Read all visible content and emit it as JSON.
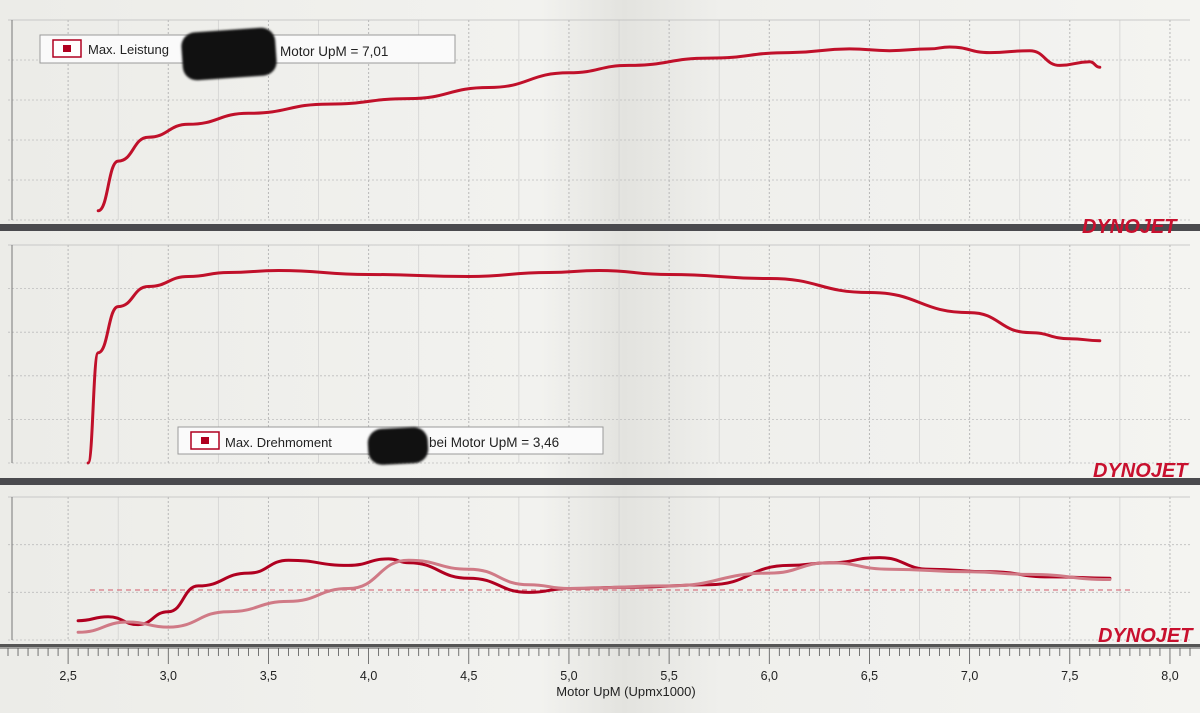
{
  "brand": {
    "logo": "DYNOJET"
  },
  "chart_data": [
    {
      "type": "line",
      "panel": "top",
      "legend_power": "Max. Leistung",
      "legend_power_rpm": "Motor UpM = 7,01",
      "series": [
        {
          "x": [
            2.65,
            2.75,
            2.9,
            3.1,
            3.4,
            3.8,
            4.2,
            4.6,
            5.0,
            5.3,
            5.7,
            6.1,
            6.4,
            6.6,
            6.8,
            6.9,
            7.1,
            7.3,
            7.45,
            7.6,
            7.65
          ],
          "y": [
            0.05,
            0.32,
            0.45,
            0.52,
            0.58,
            0.63,
            0.66,
            0.72,
            0.8,
            0.84,
            0.88,
            0.91,
            0.93,
            0.92,
            0.93,
            0.94,
            0.91,
            0.92,
            0.84,
            0.86,
            0.83
          ]
        }
      ]
    },
    {
      "type": "line",
      "panel": "middle",
      "legend_torque": "Max. Drehmoment",
      "legend_torque_rpm": "bei Motor UpM = 3,46",
      "series": [
        {
          "x": [
            2.6,
            2.65,
            2.75,
            2.9,
            3.1,
            3.3,
            3.55,
            4.0,
            4.5,
            4.9,
            5.15,
            5.5,
            6.0,
            6.5,
            7.0,
            7.3,
            7.5,
            7.65
          ],
          "y": [
            0.0,
            0.55,
            0.78,
            0.88,
            0.93,
            0.95,
            0.96,
            0.94,
            0.93,
            0.95,
            0.96,
            0.94,
            0.92,
            0.85,
            0.75,
            0.65,
            0.62,
            0.61
          ]
        }
      ]
    },
    {
      "type": "line",
      "panel": "bottom",
      "series": [
        {
          "x": [
            2.55,
            2.7,
            2.85,
            3.0,
            3.15,
            3.4,
            3.6,
            3.9,
            4.1,
            4.2,
            4.5,
            4.8,
            5.0,
            5.3,
            5.7,
            6.1,
            6.3,
            6.55,
            6.8,
            7.1,
            7.4,
            7.7
          ],
          "y": [
            0.15,
            0.18,
            0.12,
            0.22,
            0.42,
            0.52,
            0.62,
            0.58,
            0.63,
            0.6,
            0.48,
            0.37,
            0.4,
            0.41,
            0.43,
            0.58,
            0.6,
            0.64,
            0.55,
            0.53,
            0.49,
            0.48
          ],
          "color": "#b00020"
        },
        {
          "x": [
            2.55,
            2.8,
            3.0,
            3.3,
            3.6,
            3.9,
            4.2,
            4.5,
            4.8,
            5.0,
            5.5,
            6.0,
            6.3,
            6.6,
            7.0,
            7.3,
            7.7
          ],
          "y": [
            0.06,
            0.14,
            0.1,
            0.22,
            0.3,
            0.4,
            0.62,
            0.55,
            0.43,
            0.4,
            0.42,
            0.52,
            0.6,
            0.55,
            0.53,
            0.51,
            0.47
          ],
          "color": "#d07a86"
        }
      ]
    }
  ],
  "axis": {
    "xlabel": "Motor UpM (Upmx1000)",
    "xlim": [
      2.2,
      8.1
    ],
    "ticks": [
      "2,5",
      "3,0",
      "3,5",
      "4,0",
      "4,5",
      "5,0",
      "5,5",
      "6,0",
      "6,5",
      "7,0",
      "7,5",
      "8,0"
    ],
    "tick_values": [
      2.5,
      3.0,
      3.5,
      4.0,
      4.5,
      5.0,
      5.5,
      6.0,
      6.5,
      7.0,
      7.5,
      8.0
    ]
  }
}
